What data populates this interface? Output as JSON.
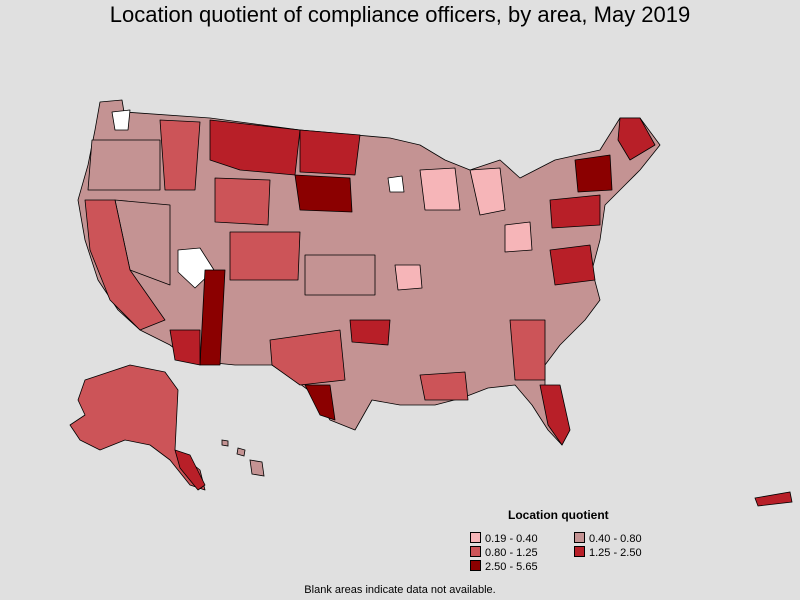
{
  "title": "Location quotient of compliance officers, by area, May 2019",
  "legend": {
    "title": "Location quotient",
    "items": [
      {
        "label": "0.19 - 0.40",
        "color": "#f6b5b8"
      },
      {
        "label": "0.40 - 0.80",
        "color": "#c49393"
      },
      {
        "label": "0.80 - 1.25",
        "color": "#cc5458"
      },
      {
        "label": "1.25 - 2.50",
        "color": "#b81f28"
      },
      {
        "label": "2.50 - 5.65",
        "color": "#8b0000"
      }
    ]
  },
  "note": "Blank areas indicate data not available.",
  "colors": {
    "background": "#e0e0e0",
    "border": "#000000",
    "no_data": "#ffffff"
  }
}
